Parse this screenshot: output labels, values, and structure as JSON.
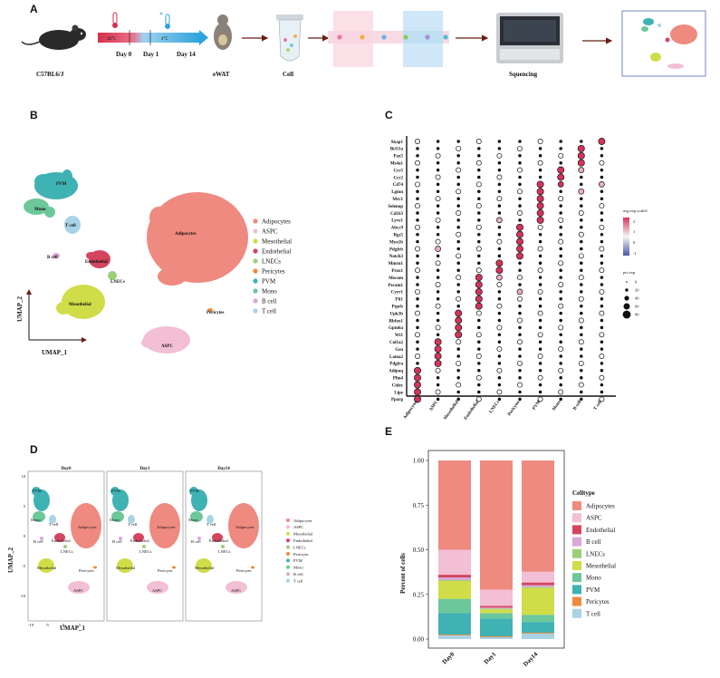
{
  "panels": {
    "a": "A",
    "b": "B",
    "c": "C",
    "d": "D",
    "e": "E"
  },
  "panel_a": {
    "mouse_label": "C57BL6/J",
    "temp_high": "30°C",
    "temp_low": "4°C",
    "days": [
      "Day 0",
      "Day 1",
      "Day 14"
    ],
    "tissue": "eWAT",
    "cell": "Cell",
    "sequencing": "Squencing",
    "colors": {
      "warm": "#d6304a",
      "cold": "#2fa4dc"
    }
  },
  "celltypes": [
    {
      "name": "Adipocytes",
      "color": "#ef8a80"
    },
    {
      "name": "ASPC",
      "color": "#f2bfd5"
    },
    {
      "name": "Mesothelial",
      "color": "#d0dc48"
    },
    {
      "name": "Endothelial",
      "color": "#d3455e"
    },
    {
      "name": "LNECs",
      "color": "#9bd07a"
    },
    {
      "name": "Pericytes",
      "color": "#f08a3c"
    },
    {
      "name": "PVM",
      "color": "#3fb2b3"
    },
    {
      "name": "Mono",
      "color": "#6cc79a"
    },
    {
      "name": "B cell",
      "color": "#d9a8d8"
    },
    {
      "name": "T cell",
      "color": "#a9d3e6"
    }
  ],
  "panel_b": {
    "xlabel": "UMAP_1",
    "ylabel": "UMAP_2",
    "cluster_labels": [
      "PVM",
      "Mono",
      "T cell",
      "B cell",
      "Endothelial",
      "LNECs",
      "Adipocytes",
      "Mesothelial",
      "Pericytes",
      "ASPC"
    ]
  },
  "panel_c": {
    "genes": [
      "Skap1",
      "Bcl11a",
      "Pax5",
      "Ms4a1",
      "Ccr5",
      "Ccr2",
      "Cd74",
      "Lgmn",
      "Mrc1",
      "Selenop",
      "Cd163",
      "Lyve1",
      "Abcc9",
      "Rgs5",
      "Myo1b",
      "Pdgfrb",
      "Notch3",
      "Mmrn1",
      "Prox1",
      "Mecom",
      "Pecam1",
      "Cyyr1",
      "Flt1",
      "Ptprb",
      "Upk3b",
      "Rbfox1",
      "Gpm6a",
      "Wt1",
      "Col1a2",
      "Gsn",
      "Lama2",
      "Pdgfra",
      "Adipoq",
      "Plin4",
      "Cidec",
      "Lipe",
      "Pparg"
    ],
    "clusters": [
      "Adipocytes",
      "ASPC",
      "Mesothelial",
      "Endothelial",
      "LNECs",
      "Pericytes",
      "PVM",
      "Mono",
      "B cell",
      "T cell"
    ],
    "legend_title_color": "avg.exp.scaled",
    "color_ticks": [
      "2",
      "1",
      "0",
      "-1"
    ],
    "legend_title_size": "pct.exp",
    "size_ticks": [
      "0",
      "20",
      "40",
      "60",
      "80"
    ]
  },
  "panel_d": {
    "facets": [
      "Day0",
      "Day1",
      "Day14"
    ],
    "xlabel": "UMAP_1",
    "ylabel": "UMAP_2",
    "x_ticks": [
      "-10",
      "-5",
      "0",
      "5"
    ],
    "y_ticks": [
      "10",
      "5",
      "0",
      "-5",
      "-10"
    ],
    "cluster_labels": [
      "PVM",
      "Mono",
      "T cell",
      "B cell",
      "Endothelial",
      "LNECs",
      "Adipocytes",
      "Mesothelial",
      "Pericytes",
      "ASPC"
    ]
  },
  "chart_data": {
    "type": "bar",
    "stacked": true,
    "title": "",
    "xlabel": "",
    "ylabel": "Percent of cells",
    "ylim": [
      0,
      1
    ],
    "y_ticks": [
      "0.00",
      "0.25",
      "0.50",
      "0.75",
      "1.00"
    ],
    "legend_title": "Celltype",
    "categories": [
      "Day0",
      "Day1",
      "Day14"
    ],
    "series": [
      {
        "name": "T cell",
        "values": [
          0.02,
          0.01,
          0.03
        ]
      },
      {
        "name": "Pericytes",
        "values": [
          0.005,
          0.005,
          0.005
        ]
      },
      {
        "name": "PVM",
        "values": [
          0.12,
          0.1,
          0.06
        ]
      },
      {
        "name": "Mono",
        "values": [
          0.08,
          0.03,
          0.04
        ]
      },
      {
        "name": "Mesothelial",
        "values": [
          0.1,
          0.02,
          0.15
        ]
      },
      {
        "name": "LNECs",
        "values": [
          0.005,
          0.005,
          0.005
        ]
      },
      {
        "name": "B cell",
        "values": [
          0.015,
          0.005,
          0.01
        ]
      },
      {
        "name": "Endothelial",
        "values": [
          0.015,
          0.01,
          0.015
        ]
      },
      {
        "name": "ASPC",
        "values": [
          0.14,
          0.09,
          0.06
        ]
      },
      {
        "name": "Adipocytes",
        "values": [
          0.5,
          0.72,
          0.62
        ]
      }
    ]
  }
}
